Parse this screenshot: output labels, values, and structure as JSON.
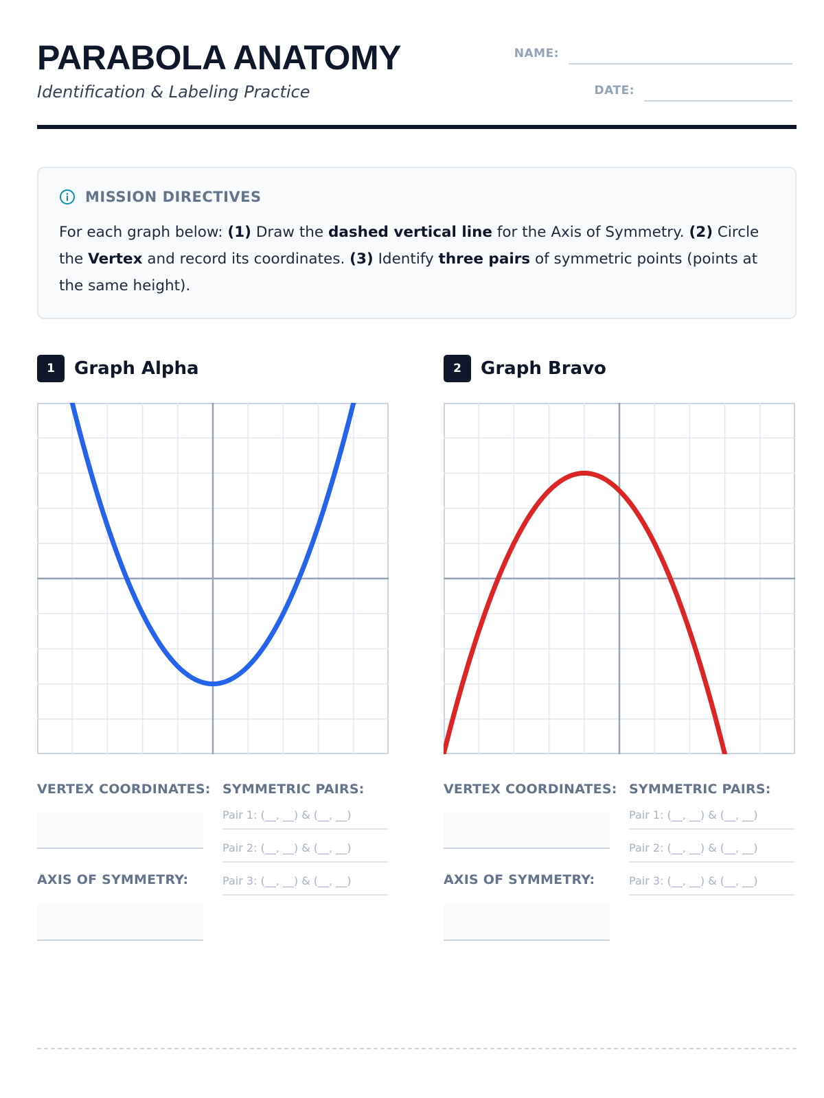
{
  "header": {
    "title": "PARABOLA ANATOMY",
    "subtitle": "Identification & Labeling Practice",
    "name_label": "NAME:",
    "date_label": "DATE:"
  },
  "directives": {
    "icon": "info-circle-icon",
    "title": "MISSION DIRECTIVES",
    "lead": "For each graph below: ",
    "step1_num": "(1)",
    "step1_a": " Draw the ",
    "step1_bold": "dashed vertical line",
    "step1_b": " for the Axis of Symmetry. ",
    "step2_num": "(2)",
    "step2_a": " Circle the ",
    "step2_bold": "Vertex",
    "step2_b": " and record its coordinates. ",
    "step3_num": "(3)",
    "step3_a": " Identify ",
    "step3_bold": "three pairs",
    "step3_b": " of symmetric points (points at the same height)."
  },
  "panels": [
    {
      "number": "1",
      "title": "Graph Alpha",
      "vertex_label": "VERTEX COORDINATES:",
      "axis_label": "AXIS OF SYMMETRY:",
      "pairs_label": "SYMMETRIC PAIRS:",
      "pairs": [
        "Pair 1: (__, __) & (__, __)",
        "Pair 2: (__, __) & (__, __)",
        "Pair 3: (__, __) & (__, __)"
      ],
      "curve_color": "#2563eb"
    },
    {
      "number": "2",
      "title": "Graph Bravo",
      "vertex_label": "VERTEX COORDINATES:",
      "axis_label": "AXIS OF SYMMETRY:",
      "pairs_label": "SYMMETRIC PAIRS:",
      "pairs": [
        "Pair 1: (__, __) & (__, __)",
        "Pair 2: (__, __) & (__, __)",
        "Pair 3: (__, __) & (__, __)"
      ],
      "curve_color": "#dc2626"
    }
  ],
  "chart_data": [
    {
      "type": "line",
      "grid": true,
      "xlim": [
        -5,
        5
      ],
      "ylim": [
        -5,
        5
      ],
      "series": [
        {
          "x": [
            -4,
            -3,
            -2,
            -1,
            0,
            1,
            2,
            3,
            4
          ],
          "y": [
            5,
            1.5,
            -1,
            -2.5,
            -3,
            -2.5,
            -1,
            1.5,
            5
          ]
        }
      ]
    },
    {
      "type": "line",
      "grid": true,
      "xlim": [
        -5,
        5
      ],
      "ylim": [
        -5,
        5
      ],
      "series": [
        {
          "x": [
            -5,
            -4,
            -3,
            -2,
            -1,
            0,
            1,
            2,
            3
          ],
          "y": [
            -5,
            -1.5,
            1,
            2.5,
            3,
            2.5,
            1,
            -1.5,
            -5
          ]
        }
      ]
    }
  ]
}
